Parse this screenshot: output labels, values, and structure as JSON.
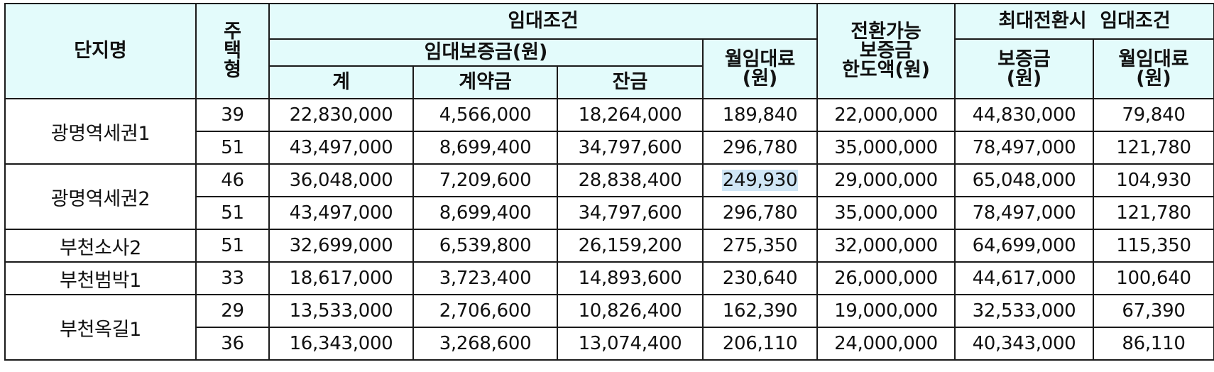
{
  "headers": {
    "complex_name": "단지명",
    "house_type": [
      "주",
      "택",
      "형"
    ],
    "lease_terms": "임대조건",
    "deposit": "임대보증금(원)",
    "deposit_total": "계",
    "deposit_contract": "계약금",
    "deposit_balance": "잔금",
    "monthly_rent": [
      "월임대료",
      "(원)"
    ],
    "convertible_limit": [
      "전환가능",
      "보증금",
      "한도액(원)"
    ],
    "max_conversion_terms": "최대전환시  임대조건",
    "max_deposit": [
      "보증금",
      "(원)"
    ],
    "max_monthly_rent": [
      "월임대료",
      "(원)"
    ]
  },
  "groups": [
    {
      "name": "광명역세권1",
      "rows": [
        {
          "type": "39",
          "total": "22,830,000",
          "contract": "4,566,000",
          "balance": "18,264,000",
          "rent": "189,840",
          "limit": "22,000,000",
          "max_deposit": "44,830,000",
          "max_rent": "79,840"
        },
        {
          "type": "51",
          "total": "43,497,000",
          "contract": "8,699,400",
          "balance": "34,797,600",
          "rent": "296,780",
          "limit": "35,000,000",
          "max_deposit": "78,497,000",
          "max_rent": "121,780"
        }
      ]
    },
    {
      "name": "광명역세권2",
      "rows": [
        {
          "type": "46",
          "total": "36,048,000",
          "contract": "7,209,600",
          "balance": "28,838,400",
          "rent": "249,930",
          "limit": "29,000,000",
          "max_deposit": "65,048,000",
          "max_rent": "104,930"
        },
        {
          "type": "51",
          "total": "43,497,000",
          "contract": "8,699,400",
          "balance": "34,797,600",
          "rent": "296,780",
          "limit": "35,000,000",
          "max_deposit": "78,497,000",
          "max_rent": "121,780"
        }
      ]
    },
    {
      "name": "부천소사2",
      "rows": [
        {
          "type": "51",
          "total": "32,699,000",
          "contract": "6,539,800",
          "balance": "26,159,200",
          "rent": "275,350",
          "limit": "32,000,000",
          "max_deposit": "64,699,000",
          "max_rent": "115,350"
        }
      ]
    },
    {
      "name": "부천범박1",
      "rows": [
        {
          "type": "33",
          "total": "18,617,000",
          "contract": "3,723,400",
          "balance": "14,893,600",
          "rent": "230,640",
          "limit": "26,000,000",
          "max_deposit": "44,617,000",
          "max_rent": "100,640"
        }
      ]
    },
    {
      "name": "부천옥길1",
      "rows": [
        {
          "type": "29",
          "total": "13,533,000",
          "contract": "2,706,600",
          "balance": "10,826,400",
          "rent": "162,390",
          "limit": "19,000,000",
          "max_deposit": "32,533,000",
          "max_rent": "67,390"
        },
        {
          "type": "36",
          "total": "16,343,000",
          "contract": "3,268,600",
          "balance": "13,074,400",
          "rent": "206,110",
          "limit": "24,000,000",
          "max_deposit": "40,343,000",
          "max_rent": "86,110"
        }
      ]
    }
  ],
  "highlighted_cell": "249,930",
  "colors": {
    "header_bg": "#e3fbfb",
    "border": "#1a1a1a",
    "selection_highlight": "#cfe6f6"
  }
}
